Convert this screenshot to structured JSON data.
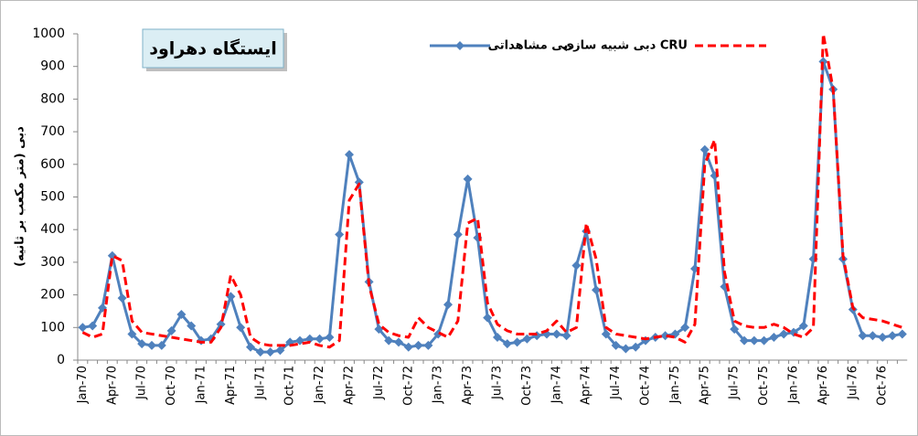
{
  "chart_data": {
    "type": "line",
    "title": "ایستگاه دهراود",
    "y_label": "دبی (متر مکعب بر ثانیه)",
    "categories": [
      "Jan-70",
      null,
      null,
      "Apr-70",
      null,
      null,
      "Jul-70",
      null,
      null,
      "Oct-70",
      null,
      null,
      "Jan-71",
      null,
      null,
      "Apr-71",
      null,
      null,
      "Jul-71",
      null,
      null,
      "Oct-71",
      null,
      null,
      "Jan-72",
      null,
      null,
      "Apr-72",
      null,
      null,
      "Jul-72",
      null,
      null,
      "Oct-72",
      null,
      null,
      "Jan-73",
      null,
      null,
      "Apr-73",
      null,
      null,
      "Jul-73",
      null,
      null,
      "Oct-73",
      null,
      null,
      "Jan-74",
      null,
      null,
      "Apr-74",
      null,
      null,
      "Jul-74",
      null,
      null,
      "Oct-74",
      null,
      null,
      "Jan-75",
      null,
      null,
      "Apr-75",
      null,
      null,
      "Jul-75",
      null,
      null,
      "Oct-75",
      null,
      null,
      "Jan-76",
      null,
      null,
      "Apr-76",
      null,
      null,
      "Jul-76",
      null,
      null,
      "Oct-76",
      null,
      null
    ],
    "series": [
      {
        "name": "دبی مشاهداتی",
        "color": "#4f81bd",
        "marker": "diamond",
        "values": [
          100,
          105,
          160,
          320,
          190,
          80,
          50,
          45,
          45,
          90,
          140,
          105,
          60,
          65,
          110,
          195,
          100,
          40,
          25,
          25,
          30,
          55,
          60,
          65,
          65,
          70,
          385,
          630,
          545,
          240,
          95,
          60,
          55,
          40,
          45,
          45,
          80,
          170,
          385,
          555,
          375,
          130,
          70,
          50,
          55,
          65,
          75,
          80,
          80,
          75,
          290,
          395,
          215,
          80,
          45,
          35,
          40,
          60,
          70,
          75,
          80,
          100,
          280,
          645,
          565,
          225,
          95,
          60,
          60,
          60,
          70,
          80,
          85,
          105,
          310,
          915,
          830,
          310,
          155,
          75,
          75,
          70,
          75,
          80
        ]
      },
      {
        "name": "دبی شبیه سازی CRU",
        "color": "#ff0000",
        "dashed": true,
        "values": [
          85,
          70,
          80,
          320,
          305,
          120,
          85,
          80,
          75,
          70,
          65,
          60,
          55,
          55,
          100,
          260,
          200,
          70,
          50,
          45,
          45,
          45,
          50,
          55,
          45,
          40,
          60,
          490,
          540,
          230,
          110,
          85,
          75,
          70,
          130,
          100,
          85,
          70,
          120,
          420,
          435,
          175,
          110,
          90,
          80,
          80,
          80,
          90,
          120,
          85,
          100,
          420,
          310,
          100,
          80,
          75,
          70,
          65,
          70,
          75,
          70,
          55,
          110,
          600,
          675,
          270,
          120,
          105,
          100,
          100,
          110,
          100,
          80,
          70,
          100,
          1000,
          830,
          320,
          160,
          130,
          125,
          120,
          110,
          100
        ]
      }
    ],
    "ylim": [
      0,
      1000
    ],
    "yticks": [
      0,
      100,
      200,
      300,
      400,
      500,
      600,
      700,
      800,
      900,
      1000
    ],
    "grid": false
  }
}
